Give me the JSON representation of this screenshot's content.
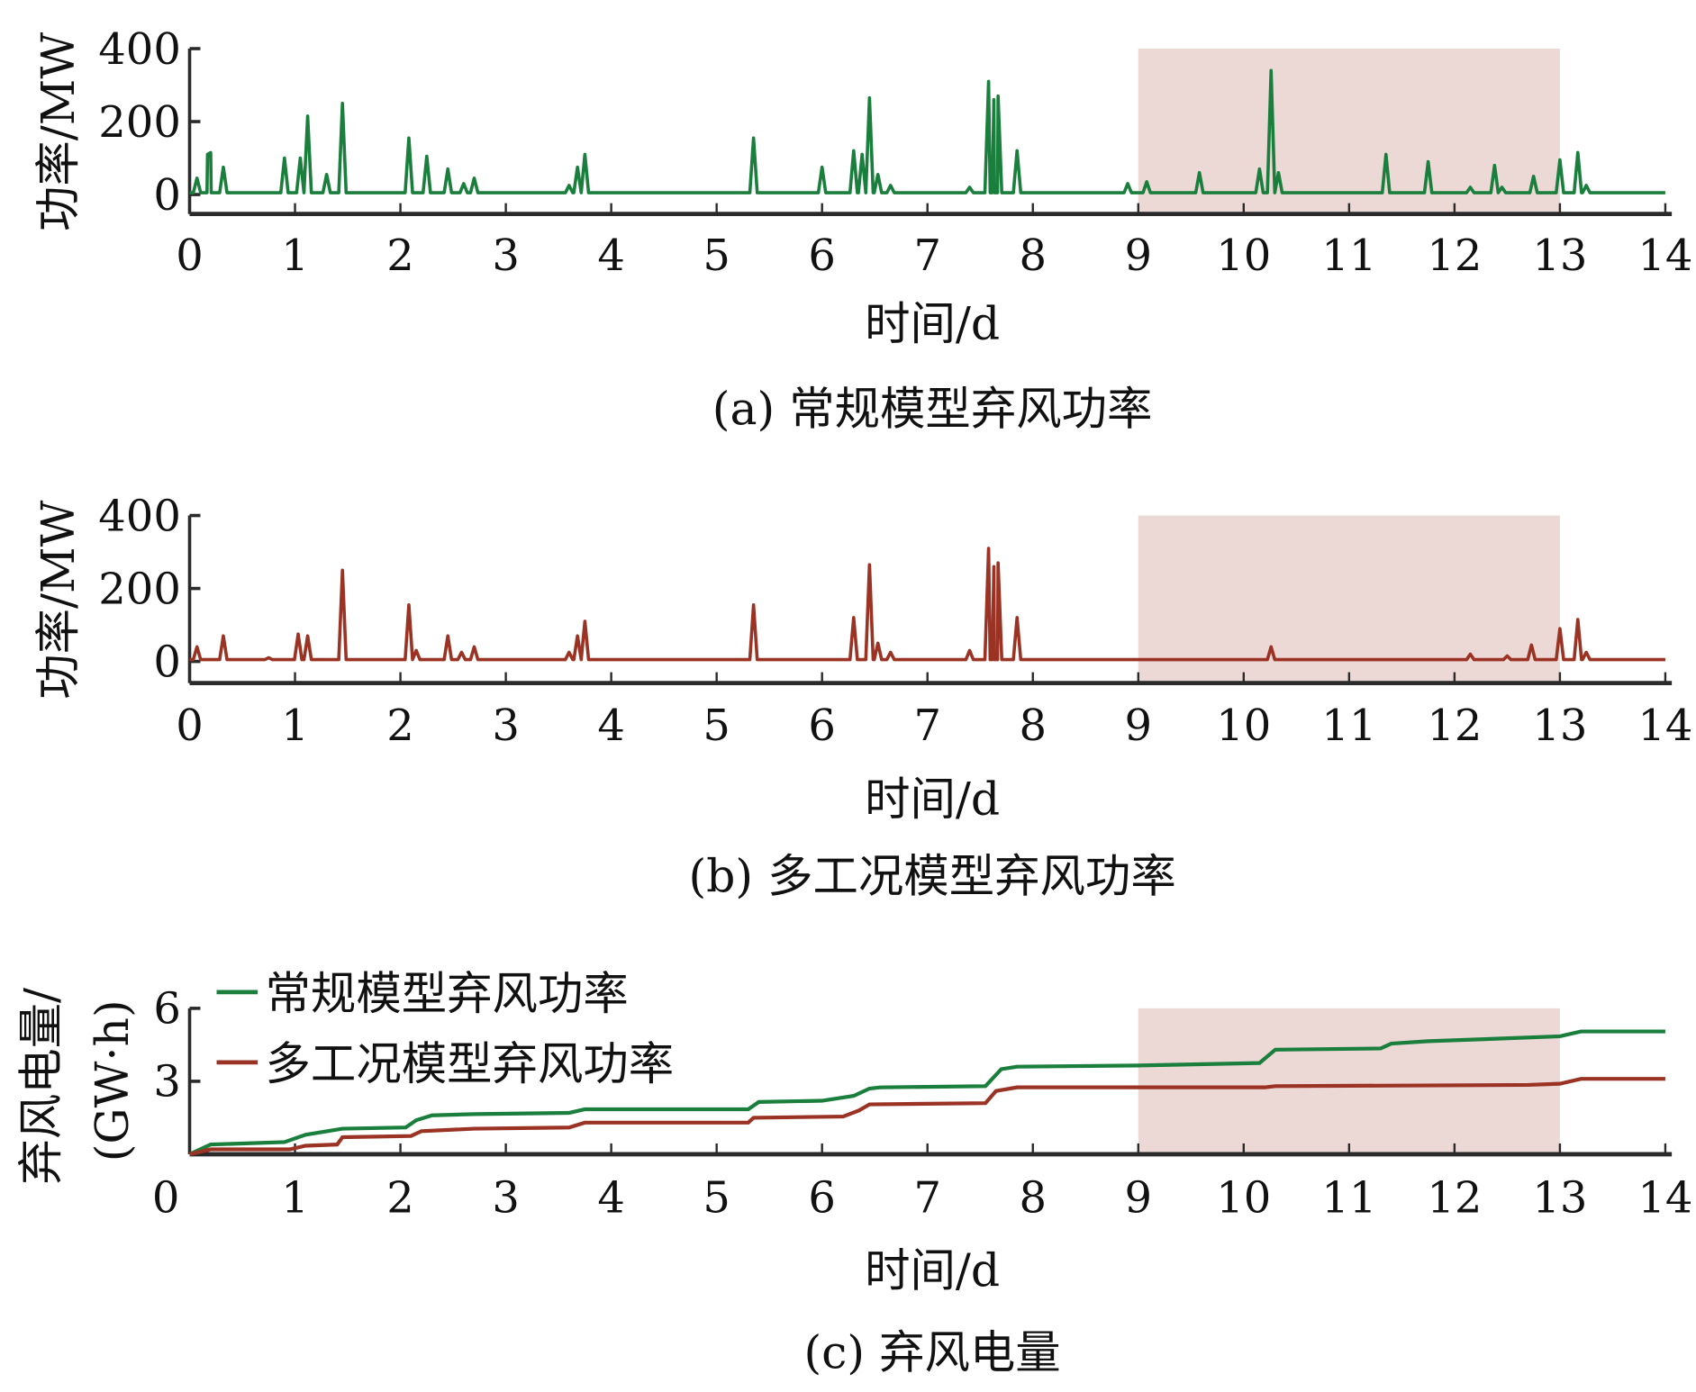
{
  "chart_data": [
    {
      "type": "line",
      "title": "(a)  常规模型弃风功率",
      "xlabel": "时间/d",
      "ylabel": "功率/MW",
      "xlim": [
        0,
        14
      ],
      "ylim": [
        0,
        400
      ],
      "xticks": [
        "0",
        "1",
        "2",
        "3",
        "4",
        "5",
        "6",
        "7",
        "8",
        "9",
        "10",
        "11",
        "12",
        "13",
        "14"
      ],
      "yticks": [
        "0",
        "200",
        "400"
      ],
      "highlight_range": [
        9,
        13
      ],
      "color": "#1a7f3c",
      "baseline": 5,
      "peaks": [
        [
          0.07,
          45
        ],
        [
          0.17,
          110
        ],
        [
          0.2,
          115
        ],
        [
          0.32,
          75
        ],
        [
          0.9,
          100
        ],
        [
          1.05,
          100
        ],
        [
          1.12,
          215
        ],
        [
          1.3,
          55
        ],
        [
          1.45,
          250
        ],
        [
          2.08,
          155
        ],
        [
          2.25,
          105
        ],
        [
          2.45,
          70
        ],
        [
          2.6,
          30
        ],
        [
          2.7,
          45
        ],
        [
          3.6,
          25
        ],
        [
          3.68,
          75
        ],
        [
          3.75,
          110
        ],
        [
          5.35,
          155
        ],
        [
          6.0,
          75
        ],
        [
          6.3,
          120
        ],
        [
          6.38,
          110
        ],
        [
          6.45,
          265
        ],
        [
          6.53,
          55
        ],
        [
          6.65,
          25
        ],
        [
          7.4,
          20
        ],
        [
          7.58,
          310
        ],
        [
          7.63,
          260
        ],
        [
          7.67,
          270
        ],
        [
          7.85,
          120
        ],
        [
          8.9,
          30
        ],
        [
          9.08,
          35
        ],
        [
          9.58,
          60
        ],
        [
          10.15,
          70
        ],
        [
          10.26,
          340
        ],
        [
          10.33,
          60
        ],
        [
          11.35,
          110
        ],
        [
          11.75,
          90
        ],
        [
          12.15,
          20
        ],
        [
          12.38,
          80
        ],
        [
          12.45,
          20
        ],
        [
          12.75,
          50
        ],
        [
          13.0,
          95
        ],
        [
          13.17,
          115
        ],
        [
          13.25,
          25
        ]
      ]
    },
    {
      "type": "line",
      "title": "(b)  多工况模型弃风功率",
      "xlabel": "时间/d",
      "ylabel": "功率/MW",
      "xlim": [
        0,
        14
      ],
      "ylim": [
        0,
        400
      ],
      "xticks": [
        "0",
        "1",
        "2",
        "3",
        "4",
        "5",
        "6",
        "7",
        "8",
        "9",
        "10",
        "11",
        "12",
        "13",
        "14"
      ],
      "yticks": [
        "0",
        "200",
        "400"
      ],
      "highlight_range": [
        9,
        13
      ],
      "color": "#9b3324",
      "baseline": 5,
      "peaks": [
        [
          0.07,
          40
        ],
        [
          0.32,
          70
        ],
        [
          0.75,
          10
        ],
        [
          1.03,
          75
        ],
        [
          1.12,
          70
        ],
        [
          1.45,
          250
        ],
        [
          2.08,
          155
        ],
        [
          2.15,
          30
        ],
        [
          2.45,
          70
        ],
        [
          2.58,
          25
        ],
        [
          2.7,
          40
        ],
        [
          3.6,
          25
        ],
        [
          3.68,
          70
        ],
        [
          3.75,
          110
        ],
        [
          5.35,
          155
        ],
        [
          6.12,
          5
        ],
        [
          6.3,
          120
        ],
        [
          6.45,
          265
        ],
        [
          6.53,
          50
        ],
        [
          6.65,
          25
        ],
        [
          7.4,
          30
        ],
        [
          7.58,
          310
        ],
        [
          7.63,
          260
        ],
        [
          7.67,
          270
        ],
        [
          7.85,
          120
        ],
        [
          10.26,
          40
        ],
        [
          12.15,
          20
        ],
        [
          12.5,
          15
        ],
        [
          12.73,
          45
        ],
        [
          13.0,
          90
        ],
        [
          13.17,
          115
        ],
        [
          13.25,
          25
        ]
      ]
    },
    {
      "type": "line",
      "title": "(c)  弃风电量",
      "xlabel": "时间/d",
      "ylabel_1": "弃风电量/",
      "ylabel_2": "(GW·h)",
      "xlim": [
        0,
        14
      ],
      "ylim": [
        0,
        6
      ],
      "xticks": [
        "0",
        "1",
        "2",
        "3",
        "4",
        "5",
        "6",
        "7",
        "8",
        "9",
        "10",
        "11",
        "12",
        "13",
        "14"
      ],
      "yticks": [
        "0",
        "3",
        "6"
      ],
      "highlight_range": [
        9,
        13
      ],
      "legend_position": "top-left",
      "series": [
        {
          "name": "常规模型弃风功率",
          "color": "#1a7f3c",
          "x": [
            0,
            0.2,
            0.9,
            1.1,
            1.45,
            2.05,
            2.15,
            2.3,
            2.7,
            3.6,
            3.75,
            5.3,
            5.4,
            6.0,
            6.3,
            6.45,
            6.55,
            7.55,
            7.7,
            7.85,
            9.0,
            10.15,
            10.3,
            11.3,
            11.4,
            11.75,
            12.4,
            13.0,
            13.2,
            14
          ],
          "y": [
            0,
            0.4,
            0.5,
            0.8,
            1.05,
            1.1,
            1.4,
            1.6,
            1.65,
            1.7,
            1.85,
            1.85,
            2.15,
            2.2,
            2.4,
            2.7,
            2.75,
            2.8,
            3.5,
            3.6,
            3.65,
            3.75,
            4.3,
            4.35,
            4.55,
            4.65,
            4.75,
            4.85,
            5.05,
            5.05
          ]
        },
        {
          "name": "多工况模型弃风功率",
          "color": "#9b3324",
          "x": [
            0,
            0.2,
            0.95,
            1.1,
            1.4,
            1.45,
            2.1,
            2.2,
            2.7,
            3.6,
            3.75,
            5.3,
            5.35,
            6.2,
            6.35,
            6.45,
            7.55,
            7.65,
            7.85,
            10.2,
            10.3,
            12.7,
            13.0,
            13.2,
            14
          ],
          "y": [
            0,
            0.2,
            0.2,
            0.35,
            0.4,
            0.7,
            0.75,
            0.95,
            1.05,
            1.1,
            1.3,
            1.3,
            1.5,
            1.55,
            1.8,
            2.05,
            2.1,
            2.6,
            2.75,
            2.75,
            2.8,
            2.85,
            2.9,
            3.1,
            3.1
          ]
        }
      ]
    }
  ]
}
